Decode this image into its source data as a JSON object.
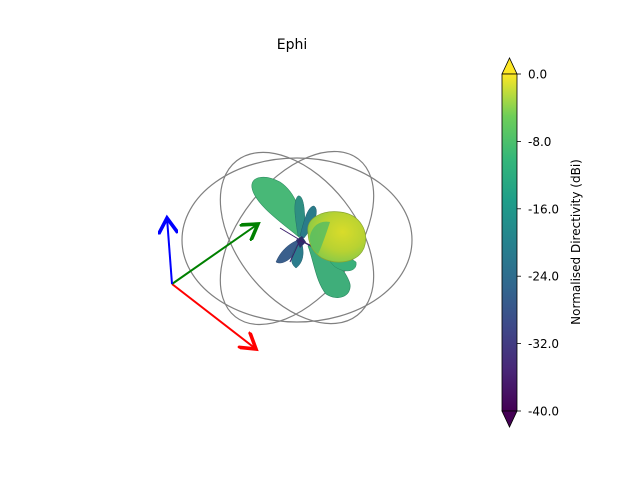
{
  "chart_data": {
    "type": "3d-radiation-pattern",
    "title": "Ephi",
    "colorbar": {
      "label": "Normalised Directivity (dBi)",
      "range": [
        -40.0,
        0.0
      ],
      "ticks": [
        "0.0",
        "-8.0",
        "-16.0",
        "-24.0",
        "-32.0",
        "-40.0"
      ],
      "tick_values": [
        0,
        -8,
        -16,
        -24,
        -32,
        -40
      ],
      "colormap": "viridis",
      "extend": "both"
    },
    "axes_arrows": [
      {
        "name": "x",
        "color": "#ff0000"
      },
      {
        "name": "y",
        "color": "#008000"
      },
      {
        "name": "z",
        "color": "#0000ff"
      }
    ],
    "reference_circles": 3,
    "lobes": [
      {
        "name": "main-lobe",
        "level_db": -4
      },
      {
        "name": "upper-lobe",
        "level_db": -12
      },
      {
        "name": "lower-lobe",
        "level_db": -14
      },
      {
        "name": "left-lobe",
        "level_db": -22
      },
      {
        "name": "side-lobe",
        "level_db": -18
      }
    ]
  }
}
